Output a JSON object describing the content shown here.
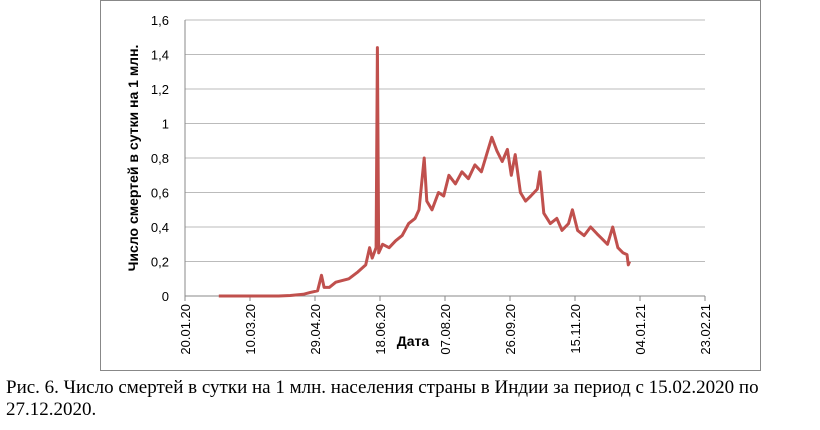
{
  "chart_data": {
    "type": "line",
    "x_label": "Дата",
    "y_label": "Число смертей в сутки на 1 млн.",
    "caption": "Рис. 6. Число смертей в сутки на 1 млн. населения страны в Индии за период с 15.02.2020 по 27.12.2020.",
    "xlim": [
      "2020-01-20",
      "2021-02-23"
    ],
    "xticks": [
      {
        "value": "2020-01-20",
        "label": "20.01.20"
      },
      {
        "value": "2020-03-10",
        "label": "10.03.20"
      },
      {
        "value": "2020-04-29",
        "label": "29.04.20"
      },
      {
        "value": "2020-06-18",
        "label": "18.06.20"
      },
      {
        "value": "2020-08-07",
        "label": "07.08.20"
      },
      {
        "value": "2020-09-26",
        "label": "26.09.20"
      },
      {
        "value": "2020-11-15",
        "label": "15.11.20"
      },
      {
        "value": "2021-01-04",
        "label": "04.01.21"
      },
      {
        "value": "2021-02-23",
        "label": "23.02.21"
      }
    ],
    "ylim": [
      0,
      1.6
    ],
    "yticks": [
      0,
      {
        "value": 0.2,
        "label": "0,2"
      },
      {
        "value": 0.4,
        "label": "0,4"
      },
      {
        "value": 0.6,
        "label": "0,6"
      },
      {
        "value": 0.8,
        "label": "0,8"
      },
      1,
      {
        "value": 1.2,
        "label": "1,2"
      },
      {
        "value": 1.4,
        "label": "1,4"
      },
      {
        "value": 1.6,
        "label": "1,6"
      }
    ],
    "grid": true,
    "color": "#c0504d",
    "x": [
      "2020-02-15",
      "2020-03-01",
      "2020-03-15",
      "2020-04-01",
      "2020-04-10",
      "2020-04-20",
      "2020-04-25",
      "2020-05-01",
      "2020-05-04",
      "2020-05-06",
      "2020-05-10",
      "2020-05-15",
      "2020-05-25",
      "2020-06-01",
      "2020-06-07",
      "2020-06-10",
      "2020-06-12",
      "2020-06-15",
      "2020-06-16",
      "2020-06-17",
      "2020-06-20",
      "2020-06-25",
      "2020-06-30",
      "2020-07-05",
      "2020-07-10",
      "2020-07-15",
      "2020-07-18",
      "2020-07-22",
      "2020-07-24",
      "2020-07-28",
      "2020-08-02",
      "2020-08-06",
      "2020-08-10",
      "2020-08-15",
      "2020-08-20",
      "2020-08-25",
      "2020-08-30",
      "2020-09-04",
      "2020-09-08",
      "2020-09-12",
      "2020-09-16",
      "2020-09-20",
      "2020-09-24",
      "2020-09-27",
      "2020-09-30",
      "2020-10-04",
      "2020-10-08",
      "2020-10-12",
      "2020-10-17",
      "2020-10-19",
      "2020-10-22",
      "2020-10-27",
      "2020-11-01",
      "2020-11-05",
      "2020-11-10",
      "2020-11-13",
      "2020-11-17",
      "2020-11-22",
      "2020-11-27",
      "2020-12-02",
      "2020-12-06",
      "2020-12-10",
      "2020-12-14",
      "2020-12-18",
      "2020-12-22",
      "2020-12-25",
      "2020-12-26",
      "2020-12-27"
    ],
    "values": [
      0,
      0,
      0,
      0,
      0.003,
      0.01,
      0.02,
      0.03,
      0.12,
      0.05,
      0.05,
      0.08,
      0.1,
      0.14,
      0.18,
      0.28,
      0.22,
      0.28,
      1.44,
      0.25,
      0.3,
      0.28,
      0.32,
      0.35,
      0.42,
      0.45,
      0.5,
      0.8,
      0.55,
      0.5,
      0.6,
      0.58,
      0.7,
      0.65,
      0.72,
      0.68,
      0.76,
      0.72,
      0.82,
      0.92,
      0.84,
      0.78,
      0.85,
      0.7,
      0.82,
      0.6,
      0.55,
      0.58,
      0.62,
      0.72,
      0.48,
      0.42,
      0.45,
      0.38,
      0.42,
      0.5,
      0.38,
      0.35,
      0.4,
      0.36,
      0.33,
      0.3,
      0.4,
      0.28,
      0.25,
      0.24,
      0.18,
      0.2
    ]
  }
}
